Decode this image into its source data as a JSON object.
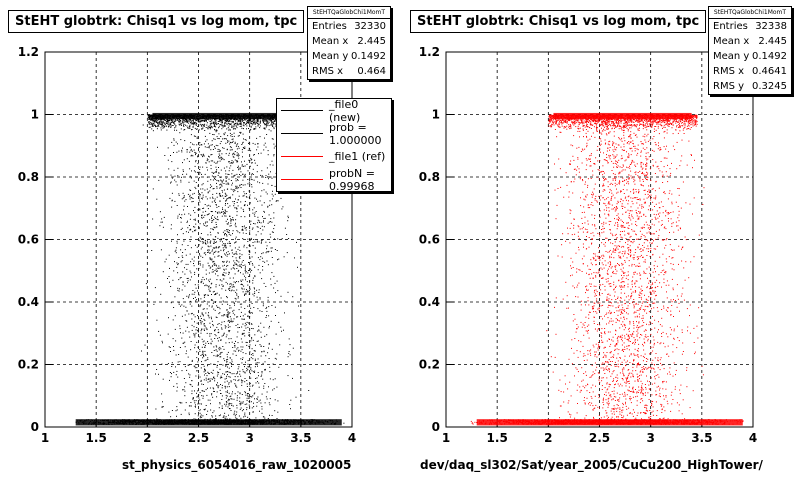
{
  "chart_data": [
    {
      "type": "scatter",
      "title": "StEHT globtrk: Chisq1 vs log mom, tpc",
      "xlabel": "st_physics_6054016_raw_1020005",
      "ylabel": "",
      "xlim": [
        1,
        4
      ],
      "ylim": [
        0,
        1.2
      ],
      "xticks": [
        "1",
        "1.5",
        "2",
        "2.5",
        "3",
        "3.5",
        "4"
      ],
      "yticks": [
        "0",
        "0.2",
        "0.4",
        "0.6",
        "0.8",
        "1",
        "1.2"
      ],
      "grid": true,
      "color": "#000000",
      "stats": {
        "header": "StEHTQaGlobChi1MomT",
        "rows": [
          {
            "label": "Entries",
            "value": "32330"
          },
          {
            "label": "Mean x",
            "value": "2.445"
          },
          {
            "label": "Mean y",
            "value": "0.1492"
          },
          {
            "label": "RMS x",
            "value": "0.464"
          }
        ]
      },
      "legend": [
        {
          "label": "_file0 (new)",
          "color": "#000000"
        },
        {
          "label": "prob = 1.000000",
          "color": "#000000"
        },
        {
          "label": "_file1 (ref)",
          "color": "#ff0000"
        },
        {
          "label": "probN = 0.99968",
          "color": "#ff0000"
        }
      ],
      "band_top": {
        "y": 1.0,
        "x_range": [
          2.0,
          3.45
        ]
      },
      "band_bottom": {
        "y": 0.01,
        "x_range": [
          1.2,
          3.95
        ]
      },
      "scatter_region": {
        "x_range": [
          1.9,
          3.6
        ],
        "y_range": [
          0.02,
          0.99
        ]
      }
    },
    {
      "type": "scatter",
      "title": "StEHT globtrk: Chisq1 vs log mom, tpc",
      "xlabel": "dev/daq_sl302/Sat/year_2005/CuCu200_HighTower/",
      "ylabel": "",
      "xlim": [
        1,
        4
      ],
      "ylim": [
        0,
        1.2
      ],
      "xticks": [
        "1",
        "1.5",
        "2",
        "2.5",
        "3",
        "3.5",
        "4"
      ],
      "yticks": [
        "0",
        "0.2",
        "0.4",
        "0.6",
        "0.8",
        "1",
        "1.2"
      ],
      "grid": true,
      "color": "#ff0000",
      "stats": {
        "header": "StEHTQaGlobChi1MomT",
        "rows": [
          {
            "label": "Entries",
            "value": "32338"
          },
          {
            "label": "Mean x",
            "value": "2.445"
          },
          {
            "label": "Mean y",
            "value": "0.1492"
          },
          {
            "label": "RMS x",
            "value": "0.4641"
          },
          {
            "label": "RMS y",
            "value": "0.3245"
          }
        ]
      },
      "band_top": {
        "y": 1.0,
        "x_range": [
          2.0,
          3.45
        ]
      },
      "band_bottom": {
        "y": 0.01,
        "x_range": [
          1.2,
          3.95
        ]
      },
      "scatter_region": {
        "x_range": [
          1.9,
          3.6
        ],
        "y_range": [
          0.02,
          0.99
        ]
      }
    }
  ]
}
